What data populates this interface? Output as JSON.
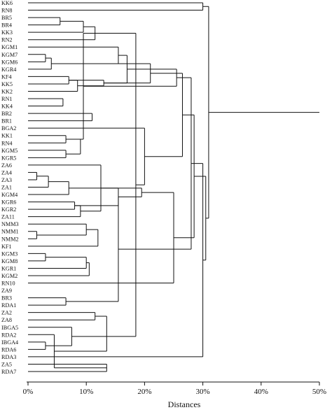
{
  "figure": {
    "type": "dendrogram",
    "xlabel": "Distances",
    "ticks": [
      "0%",
      "10%",
      "20%",
      "30%",
      "40%",
      "50%"
    ],
    "xlim": [
      0,
      50
    ],
    "leaves": [
      "KK6",
      "RN8",
      "BR5",
      "BR4",
      "KK3",
      "RN2",
      "KGM1",
      "KGM7",
      "KGM6",
      "KGR4",
      "KF4",
      "KK5",
      "KK2",
      "RN1",
      "KK4",
      "BR2",
      "BR1",
      "BGA2",
      "KK1",
      "RN4",
      "KGM5",
      "KGR5",
      "ZA6",
      "ZA4",
      "ZA3",
      "ZA1",
      "KGM4",
      "KGR6",
      "KGR2",
      "ZA11",
      "NMM3",
      "NMM1",
      "NMM2",
      "KF1",
      "KGM3",
      "KGM8",
      "KGR1",
      "KGM2",
      "RN10",
      "ZA9",
      "BR3",
      "RDA1",
      "ZA2",
      "ZA8",
      "IBGA5",
      "RDA2",
      "IBGA4",
      "RDA6",
      "RDA3",
      "ZA5",
      "RDA7"
    ],
    "merges": [
      [
        "BR5",
        "BR4",
        5.5
      ],
      [
        "KGM7",
        "KGM6",
        3.0
      ],
      [
        "KF4",
        "KK5",
        7.0
      ],
      [
        "RN1",
        "KK4",
        6.0
      ],
      [
        "BR2",
        "BR1",
        11.0
      ],
      [
        "KK1",
        "RN4",
        6.5
      ],
      [
        "KGM5",
        "KGR5",
        6.5
      ],
      [
        "ZA4",
        "ZA3",
        1.5
      ],
      [
        "KGR6",
        "KGR2",
        8.0
      ],
      [
        "NMM1",
        "NMM2",
        1.5
      ],
      [
        "KGM3",
        "KGM8",
        3.0
      ],
      [
        "BR3",
        "RDA1",
        6.5
      ],
      [
        "IBGA4",
        "RDA6",
        3.0
      ],
      [
        "ZA5",
        "RDA7",
        13.5
      ],
      [
        "n0",
        "KK3",
        9.5
      ],
      [
        "n1",
        "KGR4",
        4.0
      ],
      [
        "n2",
        "KK2",
        8.5
      ],
      [
        "n5",
        "n6",
        9.0
      ],
      [
        "n7",
        "ZA1",
        3.5
      ],
      [
        "n8",
        "ZA11",
        9.0
      ],
      [
        "NMM3",
        "n9",
        10.0
      ],
      [
        "n10",
        "KGR1",
        10.0
      ],
      [
        "ZA2",
        "ZA8",
        11.5
      ],
      [
        "n12",
        "IBGA5",
        7.5
      ],
      [
        "n14",
        "RN2",
        11.5
      ],
      [
        "KGM1",
        "n15",
        15.5
      ],
      [
        "n18",
        "KGM4",
        7.0
      ],
      [
        "n20",
        "KF1",
        12.0
      ],
      [
        "n21",
        "KGM2",
        10.5
      ],
      [
        "n13",
        "RDA2",
        4.5
      ],
      [
        "n16",
        "n2",
        13.0
      ],
      [
        "n19",
        "ZA6",
        12.5
      ],
      [
        "n26",
        "n8",
        15.5
      ],
      [
        "n23",
        "n24",
        18.5
      ],
      [
        "n22",
        "n29",
        13.5
      ],
      [
        "n11",
        "n32",
        15.5
      ],
      [
        "n25",
        "n30",
        17.0
      ],
      [
        "n24",
        "n5",
        9.5
      ],
      [
        "n31",
        "n32",
        19.5
      ],
      [
        "n15",
        "n30",
        21.0
      ],
      [
        "BGA2",
        "n33",
        20.0
      ],
      [
        "n37",
        "n36",
        25.5
      ],
      [
        "n38",
        "RN10",
        25.0
      ],
      [
        "n39",
        "n40",
        26.5
      ],
      [
        "n35",
        "n41",
        28.0
      ],
      [
        "n42",
        "n43",
        28.5
      ],
      [
        "RDA3",
        "n44",
        30.0
      ],
      [
        "n45",
        "n46",
        30.5
      ],
      [
        "KK6",
        "RN8",
        30.0
      ],
      [
        "n47",
        "n48",
        31.0
      ]
    ]
  }
}
